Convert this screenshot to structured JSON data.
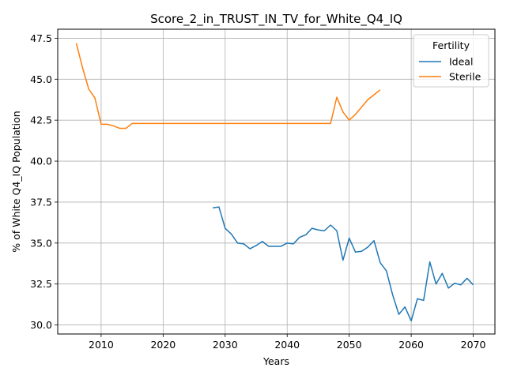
{
  "chart_data": {
    "type": "line",
    "title": "Score_2_in_TRUST_IN_TV_for_White_Q4_IQ",
    "xlabel": "Years",
    "ylabel": "% of White Q4_IQ Population",
    "xlim": [
      2003,
      2073.5
    ],
    "ylim": [
      29.45,
      48.05
    ],
    "xticks": [
      2010,
      2020,
      2030,
      2040,
      2050,
      2060,
      2070
    ],
    "yticks": [
      30.0,
      32.5,
      35.0,
      37.5,
      40.0,
      42.5,
      45.0,
      47.5
    ],
    "grid": true,
    "legend": {
      "title": "Fertility",
      "position": "top-right"
    },
    "series": [
      {
        "name": "Ideal",
        "color": "#1f77b4",
        "x": [
          2028,
          2029,
          2030,
          2031,
          2032,
          2033,
          2034,
          2035,
          2036,
          2037,
          2038,
          2039,
          2040,
          2041,
          2042,
          2043,
          2044,
          2045,
          2046,
          2047,
          2048,
          2049,
          2050,
          2051,
          2052,
          2053,
          2054,
          2055,
          2056,
          2057,
          2058,
          2059,
          2060,
          2061,
          2062,
          2063,
          2064,
          2065,
          2066,
          2067,
          2068,
          2069,
          2070
        ],
        "y": [
          37.15,
          37.2,
          35.9,
          35.55,
          35.0,
          34.95,
          34.65,
          34.85,
          35.1,
          34.8,
          34.8,
          34.8,
          35.0,
          34.95,
          35.35,
          35.5,
          35.9,
          35.8,
          35.75,
          36.1,
          35.75,
          33.95,
          35.3,
          34.45,
          34.5,
          34.75,
          35.15,
          33.8,
          33.3,
          31.85,
          30.65,
          31.1,
          30.25,
          31.6,
          31.5,
          33.85,
          32.5,
          33.15,
          32.25,
          32.55,
          32.45,
          32.85,
          32.45
        ]
      },
      {
        "name": "Sterile",
        "color": "#ff7f0e",
        "x": [
          2006,
          2007,
          2008,
          2009,
          2010,
          2011,
          2012,
          2013,
          2014,
          2015,
          2016,
          2017,
          2018,
          2019,
          2020,
          2021,
          2022,
          2023,
          2024,
          2025,
          2026,
          2027,
          2028,
          2029,
          2030,
          2031,
          2032,
          2033,
          2034,
          2035,
          2036,
          2037,
          2038,
          2039,
          2040,
          2041,
          2042,
          2043,
          2044,
          2045,
          2046,
          2047,
          2048,
          2049,
          2050,
          2051,
          2052,
          2053,
          2054,
          2055
        ],
        "y": [
          47.2,
          45.7,
          44.4,
          43.85,
          42.25,
          42.25,
          42.15,
          42.0,
          42.0,
          42.3,
          42.3,
          42.3,
          42.3,
          42.3,
          42.3,
          42.3,
          42.3,
          42.3,
          42.3,
          42.3,
          42.3,
          42.3,
          42.3,
          42.3,
          42.3,
          42.3,
          42.3,
          42.3,
          42.3,
          42.3,
          42.3,
          42.3,
          42.3,
          42.3,
          42.3,
          42.3,
          42.3,
          42.3,
          42.3,
          42.3,
          42.3,
          42.3,
          43.9,
          43.0,
          42.5,
          42.85,
          43.3,
          43.75,
          44.05,
          44.35
        ]
      }
    ]
  }
}
